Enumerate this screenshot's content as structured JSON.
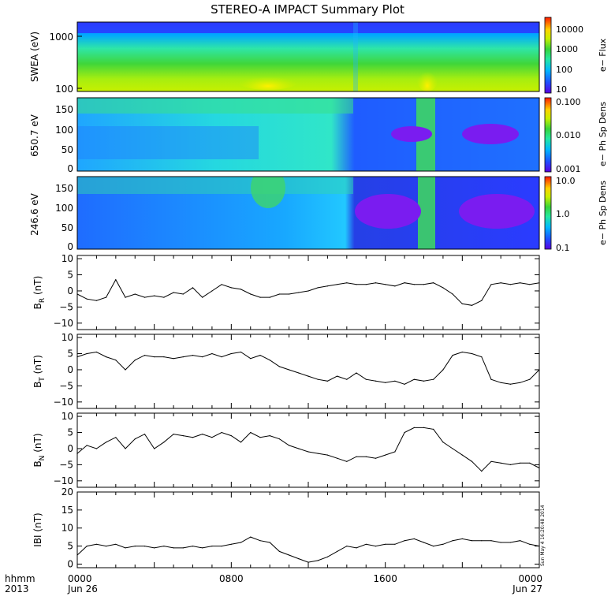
{
  "title": "STEREO-A IMPACT Summary Plot",
  "time_axis": {
    "row_label_1": "hhmm",
    "row_label_2": "2013",
    "ticks": [
      {
        "t": 0,
        "hhmm": "0000",
        "date": "Jun 26"
      },
      {
        "t": 8,
        "hhmm": "0800",
        "date": ""
      },
      {
        "t": 16,
        "hhmm": "1600",
        "date": ""
      },
      {
        "t": 24,
        "hhmm": "0000",
        "date": "Jun 27"
      }
    ]
  },
  "timestamp": "Sun May  4 16:20:48 2014",
  "colors": {
    "colormap": [
      "#5a00e0",
      "#1f4fff",
      "#00b8ff",
      "#25e8a0",
      "#37d43a",
      "#c8f000",
      "#ffd200",
      "#ff6a00",
      "#ff1a00"
    ]
  },
  "chart_data": [
    {
      "type": "heatmap",
      "ylabel": "SWEA (eV)",
      "yscale": "log",
      "yticks": [
        "100",
        "1000"
      ],
      "colorbar_label": "e− Flux",
      "colorbar_ticks": [
        "10",
        "100",
        "1000",
        "10000"
      ],
      "x_range_hours": [
        0,
        24
      ]
    },
    {
      "type": "heatmap",
      "ylabel": "650.7 eV",
      "yticks": [
        "0",
        "50",
        "100",
        "150"
      ],
      "ylim": [
        0,
        180
      ],
      "colorbar_label": "e− Ph Sp Dens",
      "colorbar_ticks": [
        "0.001",
        "0.010",
        "0.100"
      ],
      "x_range_hours": [
        0,
        24
      ]
    },
    {
      "type": "heatmap",
      "ylabel": "246.6 eV",
      "yticks": [
        "0",
        "50",
        "100",
        "150"
      ],
      "ylim": [
        0,
        180
      ],
      "colorbar_label": "e− Ph Sp Dens",
      "colorbar_ticks": [
        "0.1",
        "1.0",
        "10.0"
      ],
      "x_range_hours": [
        0,
        24
      ]
    },
    {
      "type": "line",
      "ylabel": "B",
      "ylabel_sub": "R",
      "ylabel_unit": "(nT)",
      "ylim": [
        -12,
        11
      ],
      "yticks": [
        "−10",
        "−5",
        "0",
        "5",
        "10"
      ],
      "x_hours": [
        0,
        0.5,
        1,
        1.5,
        2,
        2.5,
        3,
        3.5,
        4,
        4.5,
        5,
        5.5,
        6,
        6.5,
        7,
        7.5,
        8,
        8.5,
        9,
        9.5,
        10,
        10.5,
        11,
        11.5,
        12,
        12.5,
        13,
        13.5,
        14,
        14.5,
        15,
        15.5,
        16,
        16.5,
        17,
        17.5,
        18,
        18.5,
        19,
        19.5,
        20,
        20.5,
        21,
        21.5,
        22,
        22.5,
        23,
        23.5,
        24
      ],
      "values": [
        -1,
        -2.5,
        -3,
        -2,
        3.5,
        -2,
        -1,
        -2,
        -1.5,
        -2,
        -0.5,
        -1,
        1,
        -2,
        0,
        2,
        1,
        0.5,
        -1,
        -2,
        -2,
        -1,
        -1,
        -0.5,
        0,
        1,
        1.5,
        2,
        2.5,
        2,
        2,
        2.5,
        2,
        1.5,
        2.5,
        2,
        2,
        2.5,
        1,
        -1,
        -4,
        -4.5,
        -3,
        2,
        2.5,
        2,
        2.5,
        2,
        2.5
      ]
    },
    {
      "type": "line",
      "ylabel": "B",
      "ylabel_sub": "T",
      "ylabel_unit": "(nT)",
      "ylim": [
        -12,
        11
      ],
      "yticks": [
        "−10",
        "−5",
        "0",
        "5",
        "10"
      ],
      "x_hours": [
        0,
        0.5,
        1,
        1.5,
        2,
        2.5,
        3,
        3.5,
        4,
        4.5,
        5,
        5.5,
        6,
        6.5,
        7,
        7.5,
        8,
        8.5,
        9,
        9.5,
        10,
        10.5,
        11,
        11.5,
        12,
        12.5,
        13,
        13.5,
        14,
        14.5,
        15,
        15.5,
        16,
        16.5,
        17,
        17.5,
        18,
        18.5,
        19,
        19.5,
        20,
        20.5,
        21,
        21.5,
        22,
        22.5,
        23,
        23.5,
        24
      ],
      "values": [
        4,
        5,
        5.5,
        4,
        3,
        0,
        3,
        4.5,
        4,
        4,
        3.5,
        4,
        4.5,
        4,
        5,
        4,
        5,
        5.5,
        3.5,
        4.5,
        3,
        1,
        0,
        -1,
        -2,
        -3,
        -3.5,
        -2,
        -3,
        -1,
        -3,
        -3.5,
        -4,
        -3.5,
        -4.5,
        -3,
        -3.5,
        -3,
        0,
        4.5,
        5.5,
        5,
        4,
        -3,
        -4,
        -4.5,
        -4,
        -3,
        0
      ]
    },
    {
      "type": "line",
      "ylabel": "B",
      "ylabel_sub": "N",
      "ylabel_unit": "(nT)",
      "ylim": [
        -12,
        11
      ],
      "yticks": [
        "−10",
        "−5",
        "0",
        "5",
        "10"
      ],
      "x_hours": [
        0,
        0.5,
        1,
        1.5,
        2,
        2.5,
        3,
        3.5,
        4,
        4.5,
        5,
        5.5,
        6,
        6.5,
        7,
        7.5,
        8,
        8.5,
        9,
        9.5,
        10,
        10.5,
        11,
        11.5,
        12,
        12.5,
        13,
        13.5,
        14,
        14.5,
        15,
        15.5,
        16,
        16.5,
        17,
        17.5,
        18,
        18.5,
        19,
        19.5,
        20,
        20.5,
        21,
        21.5,
        22,
        22.5,
        23,
        23.5,
        24
      ],
      "values": [
        -1.5,
        1,
        0,
        2,
        3.5,
        0,
        3,
        4.5,
        0,
        2,
        4.5,
        4,
        3.5,
        4.5,
        3.5,
        5,
        4,
        2,
        5,
        3.5,
        4,
        3,
        1,
        0,
        -1,
        -1.5,
        -2,
        -3,
        -4,
        -2.5,
        -2.5,
        -3,
        -2,
        -1,
        5,
        6.5,
        6.5,
        6,
        2,
        0,
        -2,
        -4,
        -7,
        -4,
        -4.5,
        -5,
        -4.5,
        -4.5,
        -6
      ]
    },
    {
      "type": "line",
      "ylabel": "IBI",
      "ylabel_unit": "(nT)",
      "ylim": [
        -1,
        20
      ],
      "yticks": [
        "0",
        "5",
        "10",
        "15",
        "20"
      ],
      "x_hours": [
        0,
        0.5,
        1,
        1.5,
        2,
        2.5,
        3,
        3.5,
        4,
        4.5,
        5,
        5.5,
        6,
        6.5,
        7,
        7.5,
        8,
        8.5,
        9,
        9.5,
        10,
        10.5,
        11,
        11.5,
        12,
        12.5,
        13,
        13.5,
        14,
        14.5,
        15,
        15.5,
        16,
        16.5,
        17,
        17.5,
        18,
        18.5,
        19,
        19.5,
        20,
        20.5,
        21,
        21.5,
        22,
        22.5,
        23,
        23.5,
        24
      ],
      "values": [
        2.5,
        5,
        5.5,
        5,
        5.5,
        4.5,
        5,
        5,
        4.5,
        5,
        4.5,
        4.5,
        5,
        4.5,
        5,
        5,
        5.5,
        6,
        7.5,
        6.5,
        6,
        3.5,
        2.5,
        1.5,
        0.5,
        1,
        2,
        3.5,
        5,
        4.5,
        5.5,
        5,
        5.5,
        5.5,
        6.5,
        7,
        6,
        5,
        5.5,
        6.5,
        7,
        6.5,
        6.5,
        6.5,
        6,
        6,
        6.5,
        5.5,
        5
      ]
    }
  ]
}
